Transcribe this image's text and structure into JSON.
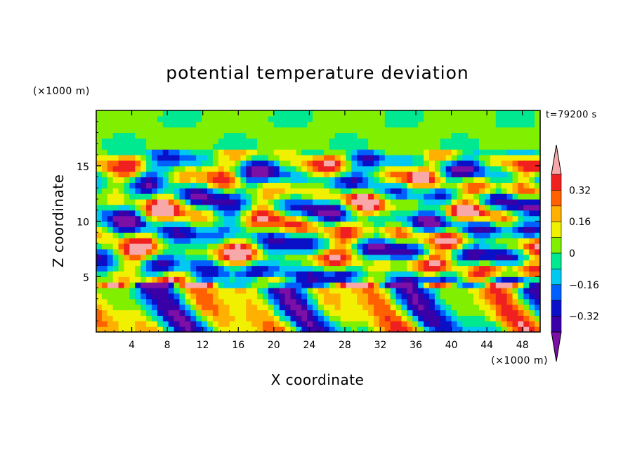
{
  "chart_data": {
    "type": "heatmap",
    "title": "potential temperature deviation",
    "xlabel": "X coordinate",
    "ylabel": "Z coordinate",
    "x_unit": "(×1000 m)",
    "y_unit": "(×1000 m)",
    "time_label": "t=79200 s",
    "xlim": [
      0,
      50
    ],
    "ylim": [
      0,
      20
    ],
    "x_ticks": [
      4,
      8,
      12,
      16,
      20,
      24,
      28,
      32,
      36,
      40,
      44,
      48
    ],
    "y_ticks": [
      5,
      10,
      15
    ],
    "colorbar": {
      "levels": [
        -0.48,
        -0.4,
        -0.32,
        -0.24,
        -0.16,
        -0.08,
        0,
        0.08,
        0.16,
        0.24,
        0.32,
        0.4
      ],
      "colors": [
        "#7b0fa6",
        "#3a00a8",
        "#0a10c8",
        "#0060ff",
        "#00c8f0",
        "#00e890",
        "#80f000",
        "#f0f000",
        "#ffb000",
        "#ff6000",
        "#f02020",
        "#f8a8a8"
      ],
      "tick_values": [
        -0.32,
        -0.16,
        0,
        0.16,
        0.32
      ],
      "tick_labels": [
        "−0.32",
        "−0.16",
        "0",
        "0.16",
        "0.32"
      ],
      "extend": "both"
    }
  }
}
